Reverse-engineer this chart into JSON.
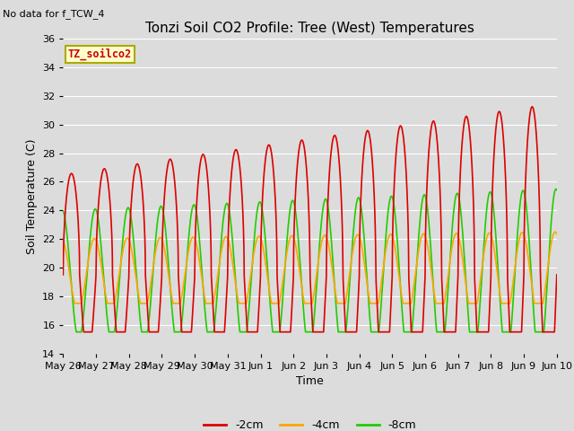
{
  "title": "Tonzi Soil CO2 Profile: Tree (West) Temperatures",
  "subtitle": "No data for f_TCW_4",
  "xlabel": "Time",
  "ylabel": "Soil Temperature (C)",
  "ylim": [
    14,
    36
  ],
  "yticks": [
    14,
    16,
    18,
    20,
    22,
    24,
    26,
    28,
    30,
    32,
    34,
    36
  ],
  "background_color": "#dcdcdc",
  "plot_bg_color": "#dcdcdc",
  "legend_box_color": "#ffffcc",
  "legend_box_edge": "#aaaa00",
  "legend_label": "TZ_soilco2",
  "series_labels": [
    "-2cm",
    "-4cm",
    "-8cm"
  ],
  "series_colors": [
    "#dd0000",
    "#ffa500",
    "#22cc00"
  ],
  "series_linewidths": [
    1.2,
    1.2,
    1.2
  ],
  "tick_labels": [
    "May 26",
    "May 27",
    "May 28",
    "May 29",
    "May 30",
    "May 31",
    "Jun 1",
    "Jun 2",
    "Jun 3",
    "Jun 4",
    "Jun 5",
    "Jun 6",
    "Jun 7",
    "Jun 8",
    "Jun 9",
    "Jun 10"
  ],
  "title_fontsize": 11,
  "axis_fontsize": 9,
  "tick_fontsize": 8
}
